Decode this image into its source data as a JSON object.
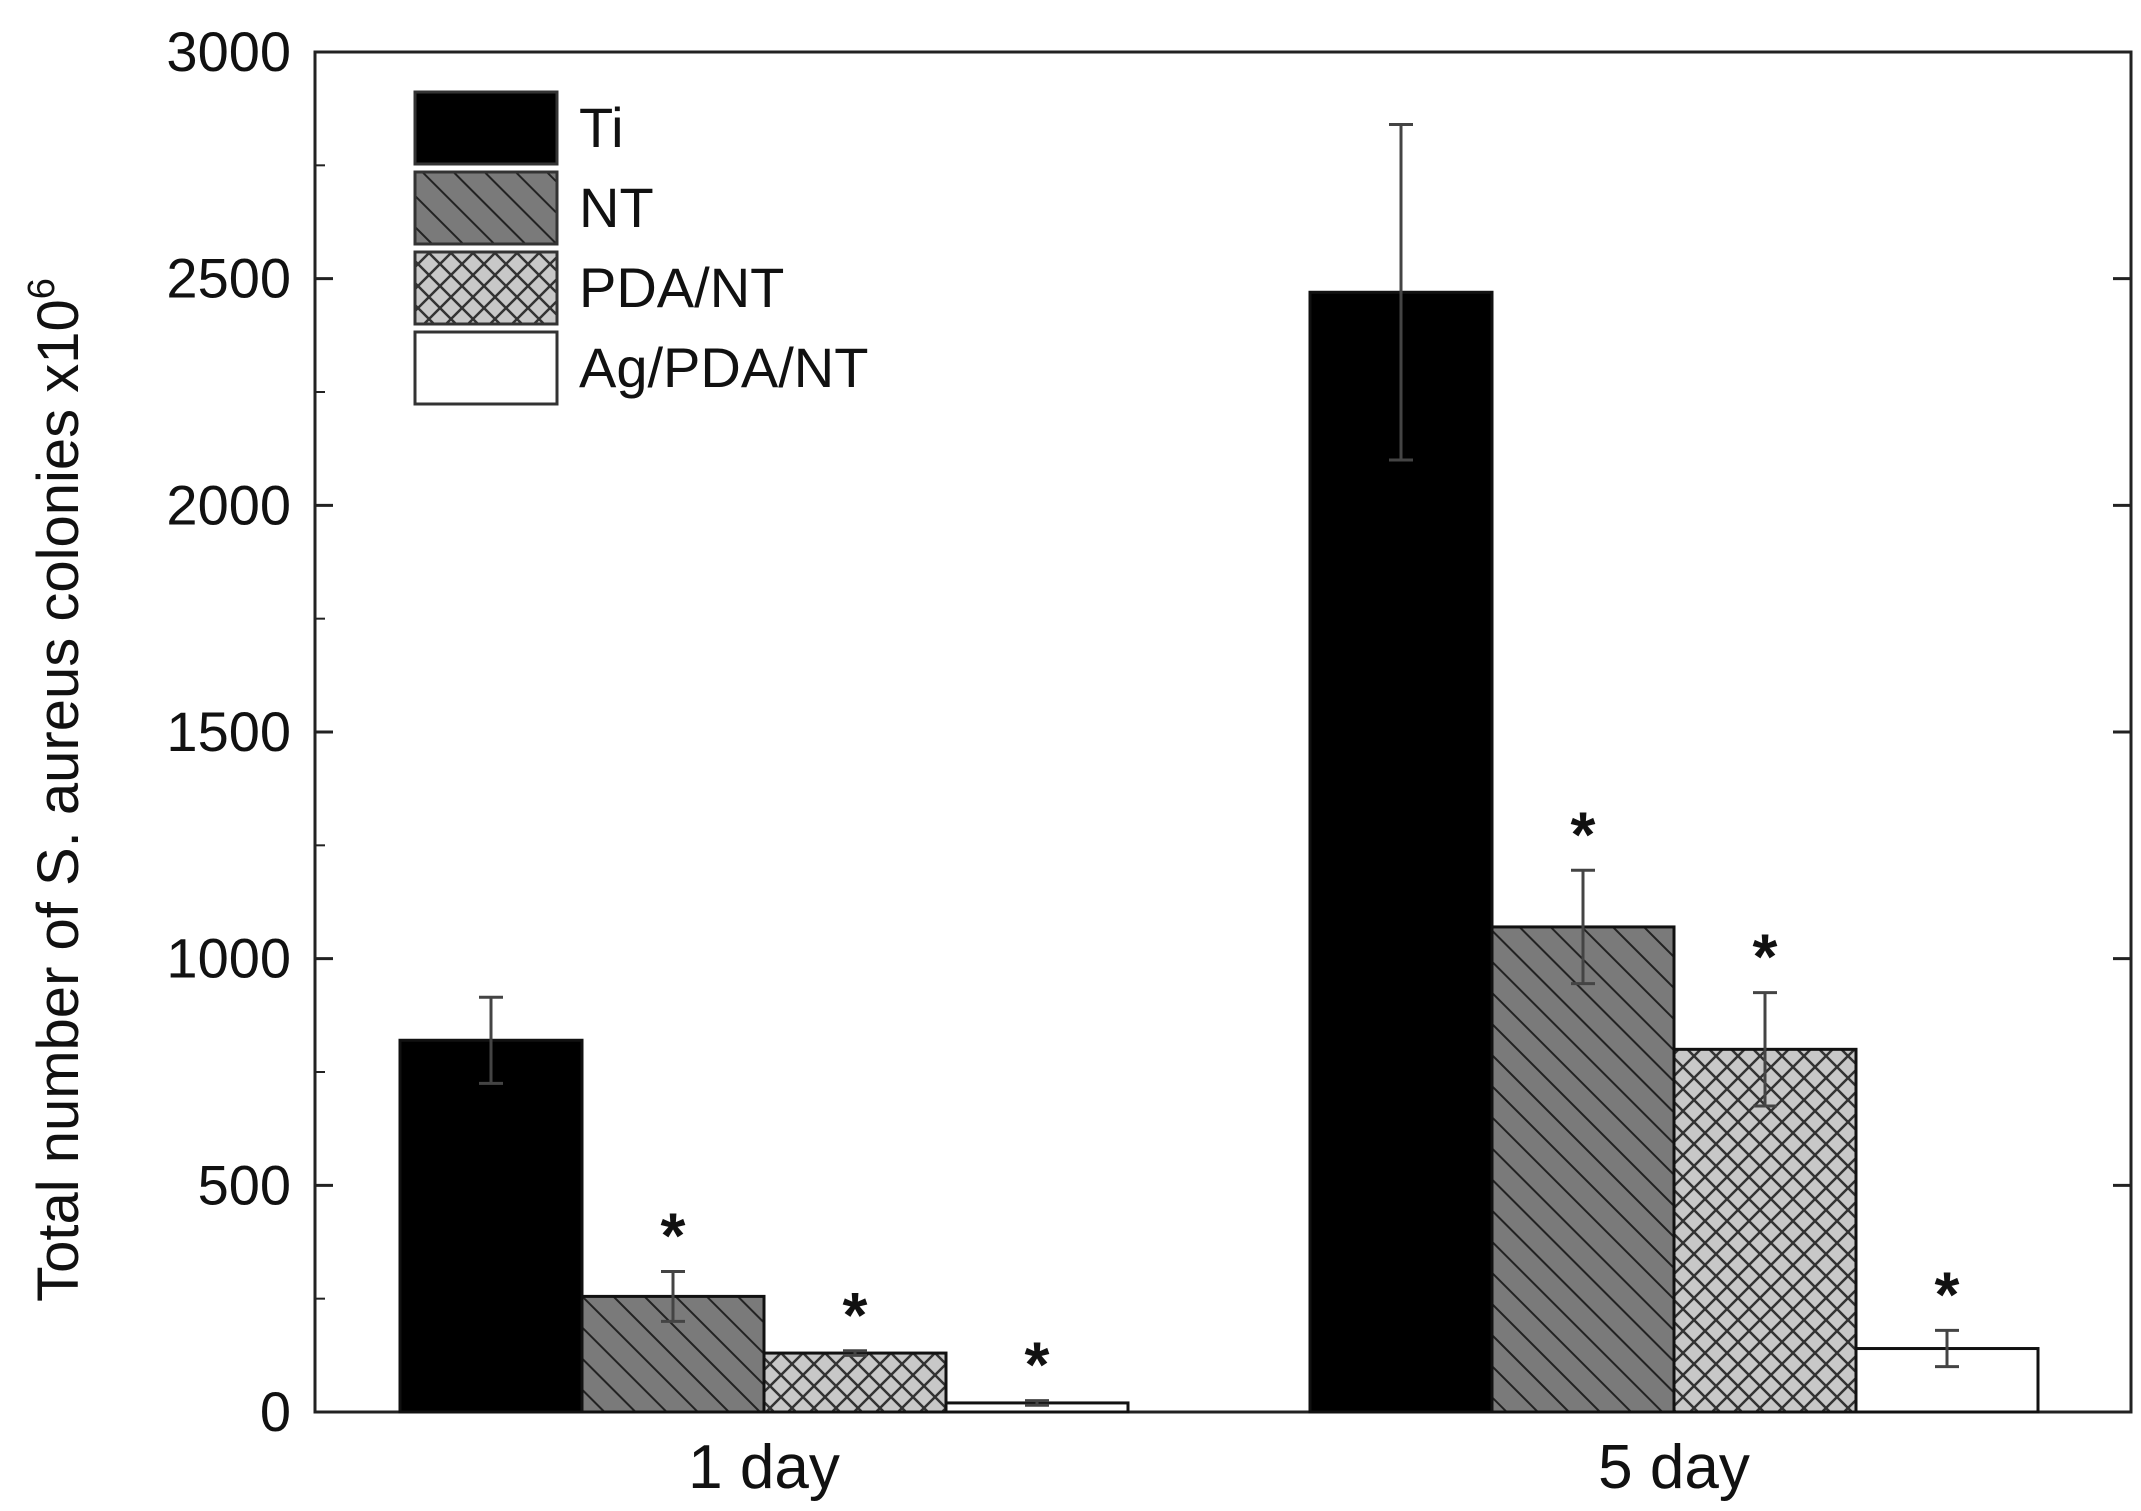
{
  "chart_data": {
    "type": "bar",
    "title": "",
    "xlabel": "",
    "ylabel": "Total number of S. aureus colonies x10",
    "ylabel_exponent": "6",
    "ylim": [
      0,
      3000
    ],
    "yticks": [
      0,
      500,
      1000,
      1500,
      2000,
      2500,
      3000
    ],
    "categories": [
      "1 day",
      "5 day"
    ],
    "legend_position": "top-left",
    "series": [
      {
        "name": "Ti",
        "values": [
          820,
          2470
        ],
        "errors": [
          95,
          370
        ],
        "significant": [
          false,
          false
        ],
        "pattern": "solid",
        "color": "#000000"
      },
      {
        "name": "NT",
        "values": [
          255,
          1070
        ],
        "errors": [
          55,
          125
        ],
        "significant": [
          true,
          true
        ],
        "pattern": "hatch",
        "color": "#7a7a7a"
      },
      {
        "name": "PDA/NT",
        "values": [
          130,
          800
        ],
        "errors": [
          5,
          125
        ],
        "significant": [
          true,
          true
        ],
        "pattern": "crosshatch",
        "color": "#c8c8c8"
      },
      {
        "name": "Ag/PDA/NT",
        "values": [
          20,
          140
        ],
        "errors": [
          5,
          40
        ],
        "significant": [
          true,
          true
        ],
        "pattern": "empty",
        "color": "#ffffff"
      }
    ],
    "significance_marker": "*"
  }
}
